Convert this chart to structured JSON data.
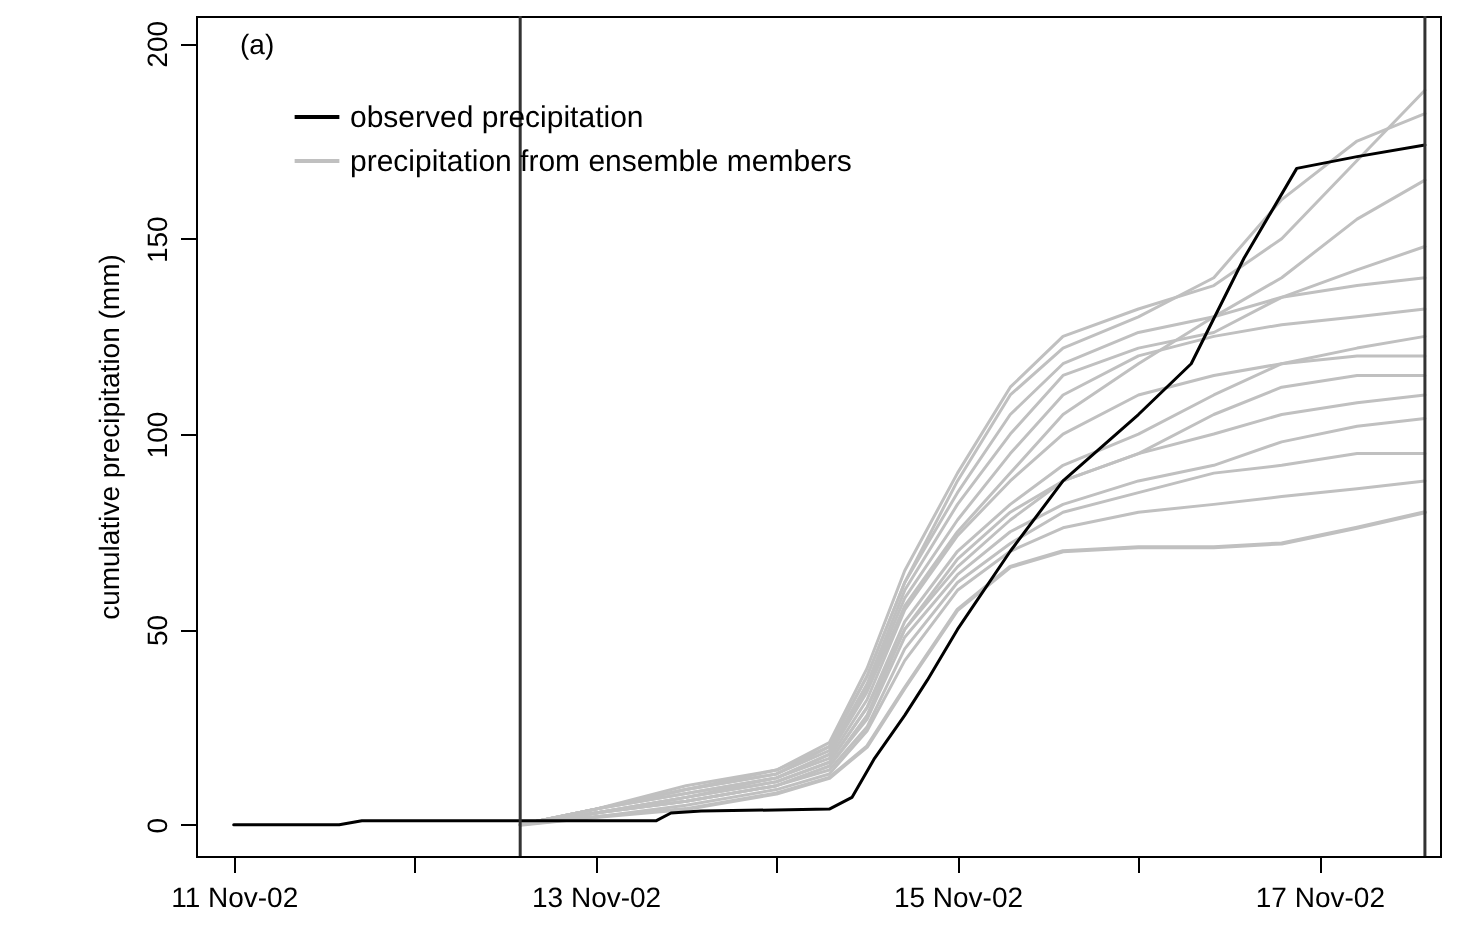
{
  "chart_data": {
    "type": "line",
    "ylabel": "cumulative precipitation (mm)",
    "annotations": [
      "(a)"
    ],
    "x": [
      "--11-12T14:00",
      "--11-13T00:00",
      "--11-13T12:00",
      "--11-14T00:00",
      "--11-14T07:00",
      "--11-14T12:00",
      "--11-14T17:00",
      "--11-15T00:00",
      "--11-15T07:00",
      "--11-15T14:00",
      "--11-16T00:00",
      "--11-16T10:00",
      "--11-16T19:00",
      "--11-17T05:00",
      "--11-17T14:00"
    ],
    "series": [
      {
        "name": "observed precipitation",
        "color": "#000000",
        "x": [
          "--11-11T00:00",
          "--11-11T14:00",
          "--11-11T17:00",
          "--11-13T08:00",
          "--11-13T10:00",
          "--11-13T14:00",
          "--11-14T07:00",
          "--11-14T10:00",
          "--11-14T13:00",
          "--11-14T17:00",
          "--11-14T20:00",
          "--11-15T00:00",
          "--11-15T07:00",
          "--11-15T14:00",
          "--11-16T00:00",
          "--11-16T07:00",
          "--11-16T14:00",
          "--11-16T21:00",
          "--11-17T05:00",
          "--11-17T14:00"
        ],
        "values": [
          0,
          0,
          1,
          1,
          3,
          3.5,
          4,
          7,
          17,
          28,
          37,
          50,
          70,
          88,
          105,
          118,
          145,
          168,
          171,
          174
        ]
      },
      {
        "name": "precipitation from ensemble members",
        "color": "#c0c0c0",
        "values": [
          0,
          2,
          4,
          8,
          12,
          20,
          35,
          55,
          66,
          70,
          71,
          71,
          72,
          76,
          80
        ]
      },
      {
        "color": "#c0c0c0",
        "values": [
          0,
          2,
          5,
          9,
          13,
          24,
          42,
          60,
          70,
          76,
          80,
          82,
          84,
          86,
          88
        ]
      },
      {
        "color": "#c0c0c0",
        "values": [
          0,
          3,
          6,
          10,
          14,
          25,
          45,
          62,
          72,
          80,
          85,
          90,
          92,
          95,
          95
        ]
      },
      {
        "color": "#c0c0c0",
        "values": [
          0,
          3,
          6,
          10,
          15,
          28,
          50,
          66,
          78,
          88,
          95,
          100,
          105,
          108,
          110
        ]
      },
      {
        "color": "#c0c0c0",
        "values": [
          0,
          3,
          7,
          11,
          16,
          30,
          52,
          70,
          82,
          92,
          100,
          110,
          118,
          122,
          125
        ]
      },
      {
        "color": "#c0c0c0",
        "values": [
          0,
          3,
          7,
          12,
          17,
          32,
          55,
          74,
          88,
          100,
          110,
          115,
          118,
          120,
          120
        ]
      },
      {
        "color": "#c0c0c0",
        "values": [
          0,
          4,
          8,
          12,
          18,
          35,
          58,
          78,
          95,
          110,
          120,
          125,
          128,
          130,
          132
        ]
      },
      {
        "color": "#c0c0c0",
        "values": [
          0,
          4,
          8,
          12,
          18,
          34,
          56,
          75,
          90,
          105,
          118,
          130,
          135,
          138,
          140
        ]
      },
      {
        "color": "#c0c0c0",
        "values": [
          0,
          4,
          9,
          13,
          19,
          36,
          60,
          82,
          100,
          115,
          122,
          126,
          135,
          142,
          148
        ]
      },
      {
        "color": "#c0c0c0",
        "values": [
          0,
          4,
          9,
          13,
          20,
          38,
          62,
          85,
          105,
          118,
          126,
          130,
          140,
          155,
          165
        ]
      },
      {
        "color": "#c0c0c0",
        "values": [
          0,
          4,
          9,
          14,
          20,
          38,
          62,
          88,
          110,
          122,
          130,
          140,
          160,
          175,
          182
        ]
      },
      {
        "color": "#c0c0c0",
        "values": [
          0,
          4,
          10,
          14,
          21,
          40,
          65,
          90,
          112,
          125,
          132,
          138,
          150,
          170,
          188
        ]
      },
      {
        "color": "#c0c0c0",
        "values": [
          0,
          3,
          7,
          11,
          16,
          30,
          50,
          68,
          80,
          88,
          95,
          105,
          112,
          115,
          115
        ]
      },
      {
        "color": "#c0c0c0",
        "values": [
          0,
          3,
          6,
          10,
          15,
          27,
          48,
          64,
          75,
          82,
          88,
          92,
          98,
          102,
          104
        ]
      }
    ],
    "xlim": [
      "--11-10T19:00",
      "--11-17T16:00"
    ],
    "xticks": [
      {
        "value": "--11-11",
        "label": "11 Nov-02"
      },
      {
        "value": "--11-12",
        "label": null
      },
      {
        "value": "--11-13",
        "label": "13 Nov-02"
      },
      {
        "value": "--11-14",
        "label": null
      },
      {
        "value": "--11-15",
        "label": "15 Nov-02"
      },
      {
        "value": "--11-16",
        "label": null
      },
      {
        "value": "--11-17",
        "label": "17 Nov-02"
      }
    ],
    "ylim": [
      -8,
      207
    ],
    "yticks": [
      0,
      50,
      100,
      150,
      200
    ],
    "ref_lines": [
      {
        "axis": "x",
        "value": "--11-12T14:00",
        "color": "#333333"
      },
      {
        "axis": "x",
        "value": "--11-17T14:00",
        "color": "#333333"
      }
    ],
    "legend": "top left",
    "grid": false,
    "line_style": "solid"
  }
}
